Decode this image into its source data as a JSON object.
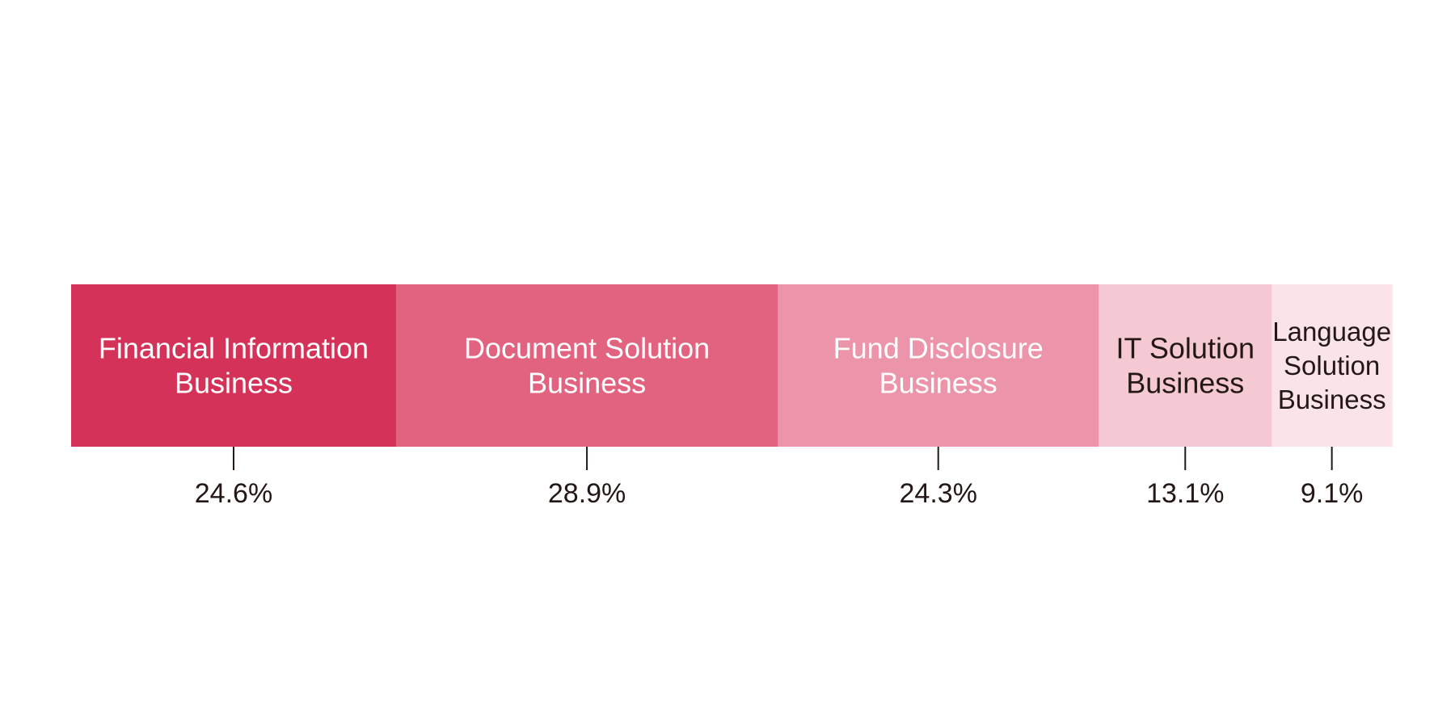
{
  "chart_data": {
    "type": "bar",
    "orientation": "horizontal-stacked-100",
    "title": "",
    "xlabel": "",
    "ylabel": "",
    "legend": "none",
    "grid": false,
    "unit": "%",
    "segments": [
      {
        "name": "Financial Information Business",
        "label_lines": [
          "Financial Information",
          "Business"
        ],
        "value": 24.6,
        "value_label": "24.6%",
        "color": "#d43258",
        "text_color": "#ffffff"
      },
      {
        "name": "Document Solution Business",
        "label_lines": [
          "Document Solution",
          "Business"
        ],
        "value": 28.9,
        "value_label": "28.9%",
        "color": "#e26380",
        "text_color": "#ffffff"
      },
      {
        "name": "Fund Disclosure Business",
        "label_lines": [
          "Fund Disclosure",
          "Business"
        ],
        "value": 24.3,
        "value_label": "24.3%",
        "color": "#ec94a9",
        "text_color": "#ffffff"
      },
      {
        "name": "IT Solution Business",
        "label_lines": [
          "IT Solution",
          "Business"
        ],
        "value": 13.1,
        "value_label": "13.1%",
        "color": "#f5c9d3",
        "text_color": "#231815"
      },
      {
        "name": "Language Solution Business",
        "label_lines": [
          "Language",
          "Solution",
          "Business"
        ],
        "value": 9.1,
        "value_label": "9.1%",
        "color": "#fae4e9",
        "text_color": "#231815"
      }
    ]
  }
}
